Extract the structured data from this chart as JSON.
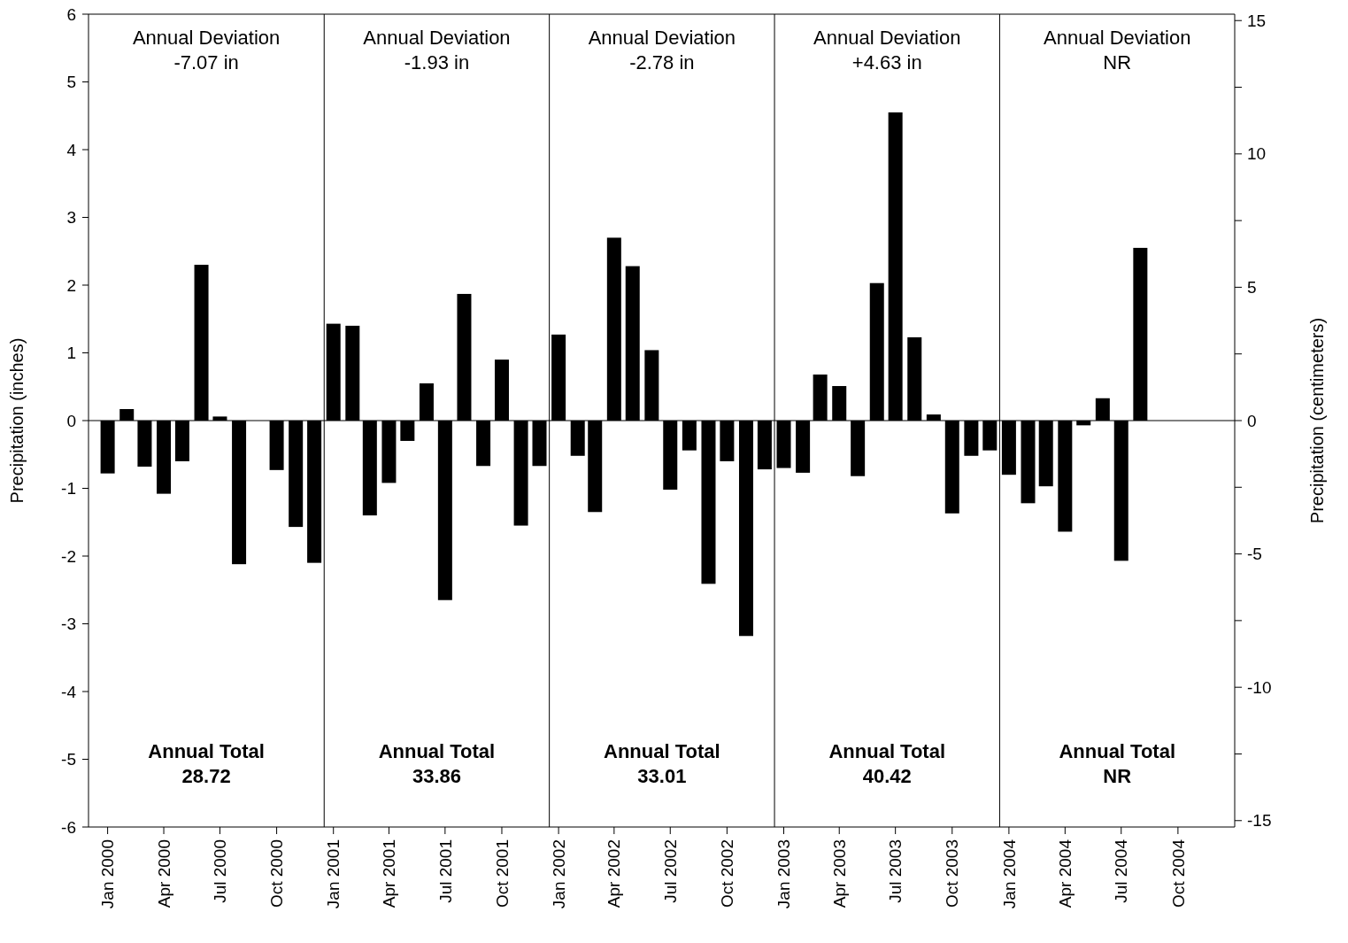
{
  "chart_data": {
    "type": "bar",
    "ylabel": "Precipitation (inches)",
    "y2label": "Precipitation (centimeters)",
    "x": [
      "2000-01",
      "2000-02",
      "2000-03",
      "2000-04",
      "2000-05",
      "2000-06",
      "2000-07",
      "2000-08",
      "2000-09",
      "2000-10",
      "2000-11",
      "2000-12",
      "2001-01",
      "2001-02",
      "2001-03",
      "2001-04",
      "2001-05",
      "2001-06",
      "2001-07",
      "2001-08",
      "2001-09",
      "2001-10",
      "2001-11",
      "2001-12",
      "2002-01",
      "2002-02",
      "2002-03",
      "2002-04",
      "2002-05",
      "2002-06",
      "2002-07",
      "2002-08",
      "2002-09",
      "2002-10",
      "2002-11",
      "2002-12",
      "2003-01",
      "2003-02",
      "2003-03",
      "2003-04",
      "2003-05",
      "2003-06",
      "2003-07",
      "2003-08",
      "2003-09",
      "2003-10",
      "2003-11",
      "2003-12",
      "2004-01",
      "2004-02",
      "2004-03",
      "2004-04",
      "2004-05",
      "2004-06",
      "2004-07",
      "2004-08"
    ],
    "series": [
      {
        "color": "#000000",
        "values": [
          -0.78,
          0.17,
          -0.68,
          -1.08,
          -0.6,
          2.3,
          0.06,
          -2.12,
          0,
          -0.73,
          -1.57,
          -2.1,
          1.43,
          1.4,
          -1.4,
          -0.92,
          -0.3,
          0.55,
          -2.65,
          1.87,
          -0.67,
          0.9,
          -1.55,
          -0.67,
          1.27,
          -0.52,
          -1.35,
          2.7,
          2.28,
          1.04,
          -1.02,
          -0.44,
          -2.41,
          -0.6,
          -3.18,
          -0.72,
          -0.7,
          -0.77,
          0.68,
          0.51,
          -0.82,
          2.03,
          4.55,
          1.23,
          0.09,
          -1.37,
          -0.52,
          -0.44,
          -0.8,
          -1.22,
          -0.97,
          -1.64,
          -0.07,
          0.33,
          -2.07,
          2.55
        ]
      }
    ],
    "xlim": [
      "1999-12",
      "2005-01"
    ],
    "xticks": [
      {
        "value": "2000-01",
        "label": "Jan 2000"
      },
      {
        "value": "2000-04",
        "label": "Apr 2000"
      },
      {
        "value": "2000-07",
        "label": "Jul 2000"
      },
      {
        "value": "2000-10",
        "label": "Oct 2000"
      },
      {
        "value": "2001-01",
        "label": "Jan 2001"
      },
      {
        "value": "2001-04",
        "label": "Apr 2001"
      },
      {
        "value": "2001-07",
        "label": "Jul 2001"
      },
      {
        "value": "2001-10",
        "label": "Oct 2001"
      },
      {
        "value": "2002-01",
        "label": "Jan 2002"
      },
      {
        "value": "2002-04",
        "label": "Apr 2002"
      },
      {
        "value": "2002-07",
        "label": "Jul 2002"
      },
      {
        "value": "2002-10",
        "label": "Oct 2002"
      },
      {
        "value": "2003-01",
        "label": "Jan 2003"
      },
      {
        "value": "2003-04",
        "label": "Apr 2003"
      },
      {
        "value": "2003-07",
        "label": "Jul 2003"
      },
      {
        "value": "2003-10",
        "label": "Oct 2003"
      },
      {
        "value": "2004-01",
        "label": "Jan 2004"
      },
      {
        "value": "2004-04",
        "label": "Apr 2004"
      },
      {
        "value": "2004-07",
        "label": "Jul 2004"
      },
      {
        "value": "2004-10",
        "label": "Oct 2004"
      }
    ],
    "ylim": [
      -6,
      6
    ],
    "yticks": [
      -6,
      -5,
      -4,
      -3,
      -2,
      -1,
      0,
      1,
      2,
      3,
      4,
      5,
      6
    ],
    "y2lim": [
      -15.24,
      15.24
    ],
    "y2ticks": [
      -15,
      {
        "value": -12.5,
        "label": null
      },
      -10,
      {
        "value": -7.5,
        "label": null
      },
      -5,
      {
        "value": -2.5,
        "label": null
      },
      0,
      {
        "value": 2.5,
        "label": null
      },
      5,
      {
        "value": 7.5,
        "label": null
      },
      10,
      {
        "value": 12.5,
        "label": null
      },
      15
    ],
    "ref_lines": [
      {
        "axis": "y",
        "value": 0,
        "color": "#000000"
      },
      {
        "axis": "x",
        "value": "2000-12-17",
        "color": "#000000"
      },
      {
        "axis": "x",
        "value": "2001-12-17",
        "color": "#000000"
      },
      {
        "axis": "x",
        "value": "2002-12-17",
        "color": "#000000"
      },
      {
        "axis": "x",
        "value": "2003-12-17",
        "color": "#000000"
      }
    ],
    "annotations": [
      "Annual Deviation\n-7.07 in",
      "Annual Deviation\n-1.93 in",
      "Annual Deviation\n-2.78 in",
      "Annual Deviation\n+4.63 in",
      "Annual Deviation\nNR",
      "Annual Total\n28.72",
      "Annual Total\n33.86",
      "Annual Total\n33.01",
      "Annual Total\n40.42",
      "Annual Total\nNR"
    ]
  }
}
